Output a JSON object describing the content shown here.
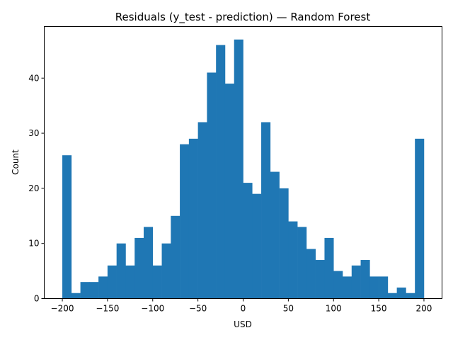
{
  "chart_data": {
    "type": "bar",
    "title": "Residuals (y_test - prediction) — Random Forest",
    "xlabel": "USD",
    "ylabel": "Count",
    "xlim": [
      -220,
      220
    ],
    "ylim": [
      0,
      49.35
    ],
    "bins": {
      "start": -200,
      "width": 10,
      "counts": [
        26,
        1,
        3,
        3,
        4,
        6,
        10,
        6,
        11,
        13,
        6,
        10,
        15,
        28,
        29,
        32,
        41,
        46,
        39,
        47,
        21,
        19,
        32,
        23,
        20,
        14,
        13,
        9,
        7,
        11,
        5,
        4,
        6,
        7,
        4,
        4,
        1,
        2,
        1,
        29
      ]
    },
    "bar_color": "#1f77b4",
    "xticks": [
      -200,
      -150,
      -100,
      -50,
      0,
      50,
      100,
      150,
      200
    ],
    "xtick_labels": [
      "−200",
      "−150",
      "−100",
      "−50",
      "0",
      "50",
      "100",
      "150",
      "200"
    ],
    "yticks": [
      0,
      10,
      20,
      30,
      40
    ],
    "ytick_labels": [
      "0",
      "10",
      "20",
      "30",
      "40"
    ],
    "grid": false,
    "legend": "none"
  }
}
